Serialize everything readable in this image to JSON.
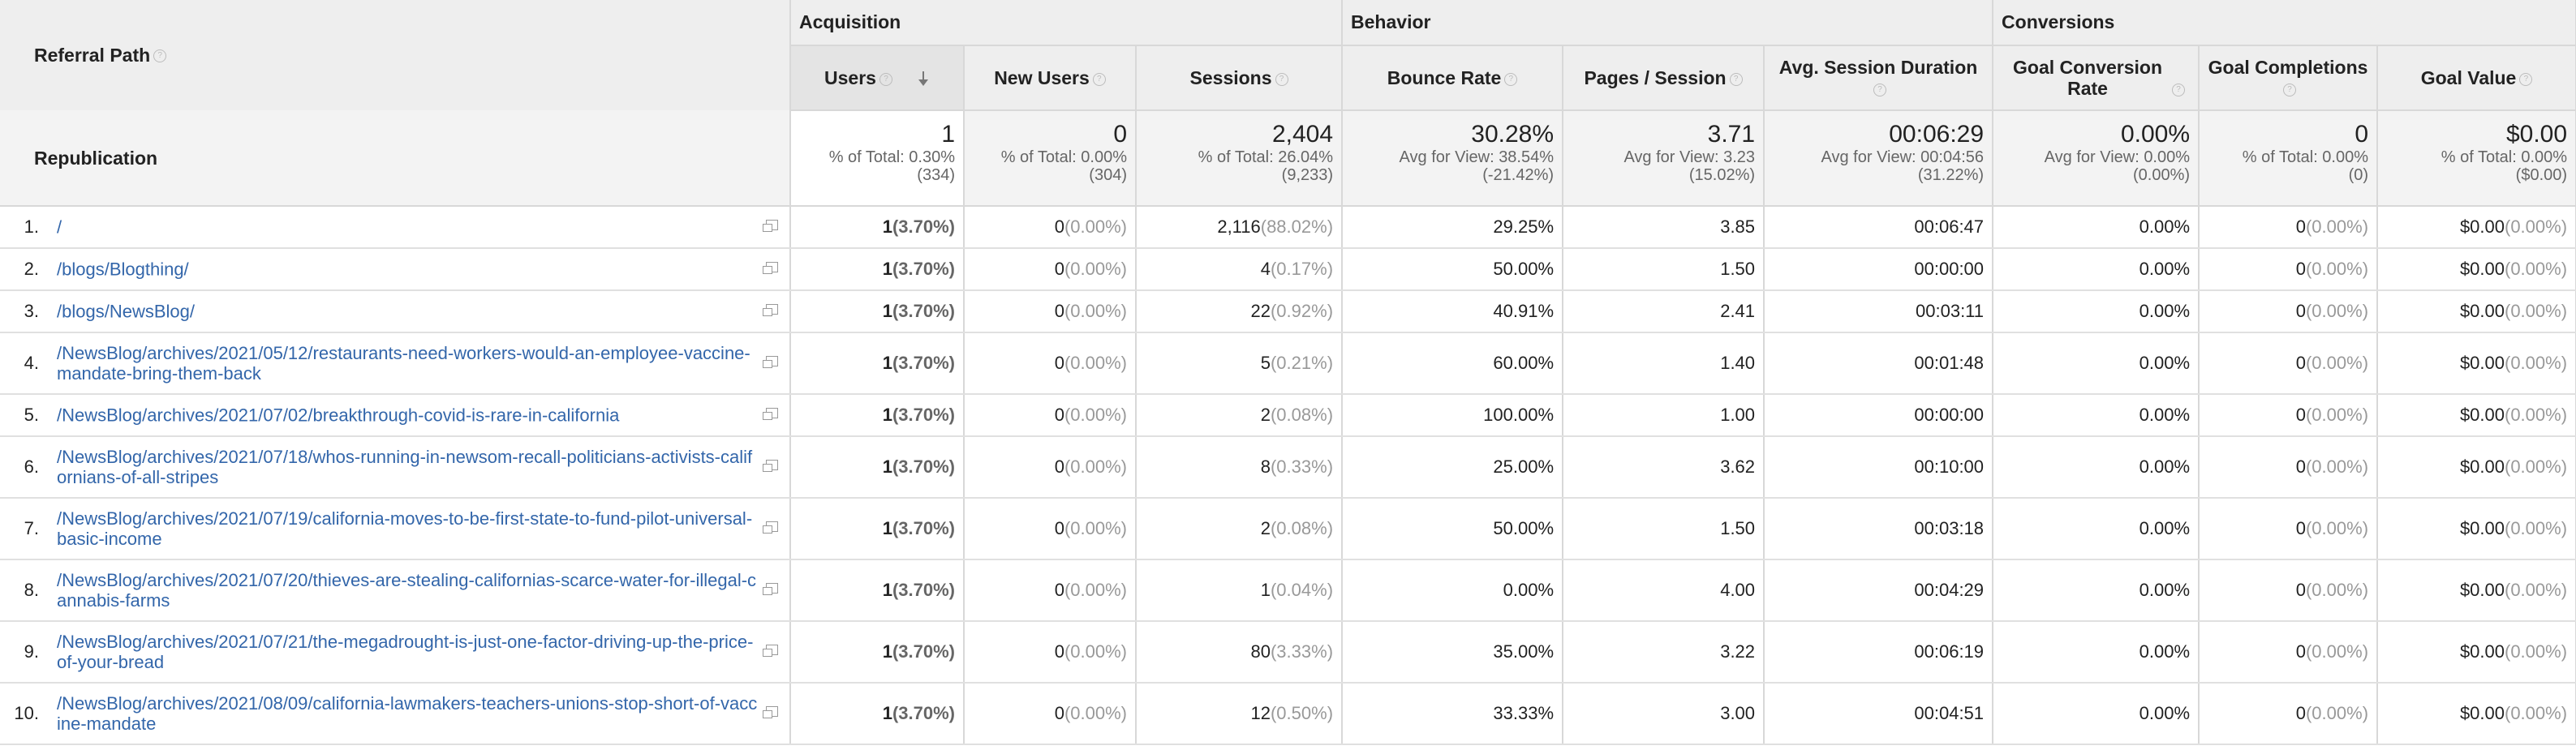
{
  "header": {
    "referral_path_label": "Referral Path",
    "groups": {
      "acquisition": "Acquisition",
      "behavior": "Behavior",
      "conversions": "Conversions"
    },
    "columns": {
      "users": "Users",
      "new_users": "New Users",
      "sessions": "Sessions",
      "bounce_rate": "Bounce Rate",
      "pages_session": "Pages / Session",
      "avg_duration": "Avg. Session Duration",
      "goal_conv_rate": "Goal Conversion Rate",
      "goal_completions": "Goal Completions",
      "goal_value": "Goal Value"
    }
  },
  "summary": {
    "label": "Republication",
    "users": {
      "value": "1",
      "line1": "% of Total: 0.30%",
      "line2": "(334)"
    },
    "new_users": {
      "value": "0",
      "line1": "% of Total: 0.00%",
      "line2": "(304)"
    },
    "sessions": {
      "value": "2,404",
      "line1": "% of Total: 26.04%",
      "line2": "(9,233)"
    },
    "bounce_rate": {
      "value": "30.28%",
      "line1": "Avg for View: 38.54%",
      "line2": "(-21.42%)"
    },
    "pages_session": {
      "value": "3.71",
      "line1": "Avg for View: 3.23",
      "line2": "(15.02%)"
    },
    "avg_duration": {
      "value": "00:06:29",
      "line1": "Avg for View: 00:04:56",
      "line2": "(31.22%)"
    },
    "goal_conv_rate": {
      "value": "0.00%",
      "line1": "Avg for View: 0.00%",
      "line2": "(0.00%)"
    },
    "goal_completions": {
      "value": "0",
      "line1": "% of Total: 0.00%",
      "line2": "(0)"
    },
    "goal_value": {
      "value": "$0.00",
      "line1": "% of Total: 0.00%",
      "line2": "($0.00)"
    }
  },
  "rows": [
    {
      "index": "1.",
      "path": "/",
      "users": "1",
      "users_pct": "(3.70%)",
      "new_users": "0",
      "new_users_pct": "(0.00%)",
      "sessions": "2,116",
      "sessions_pct": "(88.02%)",
      "bounce_rate": "29.25%",
      "pages_session": "3.85",
      "avg_duration": "00:06:47",
      "goal_conv_rate": "0.00%",
      "goal_completions": "0",
      "goal_completions_pct": "(0.00%)",
      "goal_value": "$0.00",
      "goal_value_pct": "(0.00%)"
    },
    {
      "index": "2.",
      "path": "/blogs/Blogthing/",
      "users": "1",
      "users_pct": "(3.70%)",
      "new_users": "0",
      "new_users_pct": "(0.00%)",
      "sessions": "4",
      "sessions_pct": "(0.17%)",
      "bounce_rate": "50.00%",
      "pages_session": "1.50",
      "avg_duration": "00:00:00",
      "goal_conv_rate": "0.00%",
      "goal_completions": "0",
      "goal_completions_pct": "(0.00%)",
      "goal_value": "$0.00",
      "goal_value_pct": "(0.00%)"
    },
    {
      "index": "3.",
      "path": "/blogs/NewsBlog/",
      "users": "1",
      "users_pct": "(3.70%)",
      "new_users": "0",
      "new_users_pct": "(0.00%)",
      "sessions": "22",
      "sessions_pct": "(0.92%)",
      "bounce_rate": "40.91%",
      "pages_session": "2.41",
      "avg_duration": "00:03:11",
      "goal_conv_rate": "0.00%",
      "goal_completions": "0",
      "goal_completions_pct": "(0.00%)",
      "goal_value": "$0.00",
      "goal_value_pct": "(0.00%)"
    },
    {
      "index": "4.",
      "path": "/NewsBlog/archives/2021/05/12/restaurants-need-workers-would-an-employee-vaccine-mandate-bring-them-back",
      "users": "1",
      "users_pct": "(3.70%)",
      "new_users": "0",
      "new_users_pct": "(0.00%)",
      "sessions": "5",
      "sessions_pct": "(0.21%)",
      "bounce_rate": "60.00%",
      "pages_session": "1.40",
      "avg_duration": "00:01:48",
      "goal_conv_rate": "0.00%",
      "goal_completions": "0",
      "goal_completions_pct": "(0.00%)",
      "goal_value": "$0.00",
      "goal_value_pct": "(0.00%)"
    },
    {
      "index": "5.",
      "path": "/NewsBlog/archives/2021/07/02/breakthrough-covid-is-rare-in-california",
      "users": "1",
      "users_pct": "(3.70%)",
      "new_users": "0",
      "new_users_pct": "(0.00%)",
      "sessions": "2",
      "sessions_pct": "(0.08%)",
      "bounce_rate": "100.00%",
      "pages_session": "1.00",
      "avg_duration": "00:00:00",
      "goal_conv_rate": "0.00%",
      "goal_completions": "0",
      "goal_completions_pct": "(0.00%)",
      "goal_value": "$0.00",
      "goal_value_pct": "(0.00%)"
    },
    {
      "index": "6.",
      "path": "/NewsBlog/archives/2021/07/18/whos-running-in-newsom-recall-politicians-activists-californians-of-all-stripes",
      "users": "1",
      "users_pct": "(3.70%)",
      "new_users": "0",
      "new_users_pct": "(0.00%)",
      "sessions": "8",
      "sessions_pct": "(0.33%)",
      "bounce_rate": "25.00%",
      "pages_session": "3.62",
      "avg_duration": "00:10:00",
      "goal_conv_rate": "0.00%",
      "goal_completions": "0",
      "goal_completions_pct": "(0.00%)",
      "goal_value": "$0.00",
      "goal_value_pct": "(0.00%)"
    },
    {
      "index": "7.",
      "path": "/NewsBlog/archives/2021/07/19/california-moves-to-be-first-state-to-fund-pilot-universal-basic-income",
      "users": "1",
      "users_pct": "(3.70%)",
      "new_users": "0",
      "new_users_pct": "(0.00%)",
      "sessions": "2",
      "sessions_pct": "(0.08%)",
      "bounce_rate": "50.00%",
      "pages_session": "1.50",
      "avg_duration": "00:03:18",
      "goal_conv_rate": "0.00%",
      "goal_completions": "0",
      "goal_completions_pct": "(0.00%)",
      "goal_value": "$0.00",
      "goal_value_pct": "(0.00%)"
    },
    {
      "index": "8.",
      "path": "/NewsBlog/archives/2021/07/20/thieves-are-stealing-californias-scarce-water-for-illegal-cannabis-farms",
      "users": "1",
      "users_pct": "(3.70%)",
      "new_users": "0",
      "new_users_pct": "(0.00%)",
      "sessions": "1",
      "sessions_pct": "(0.04%)",
      "bounce_rate": "0.00%",
      "pages_session": "4.00",
      "avg_duration": "00:04:29",
      "goal_conv_rate": "0.00%",
      "goal_completions": "0",
      "goal_completions_pct": "(0.00%)",
      "goal_value": "$0.00",
      "goal_value_pct": "(0.00%)"
    },
    {
      "index": "9.",
      "path": "/NewsBlog/archives/2021/07/21/the-megadrought-is-just-one-factor-driving-up-the-price-of-your-bread",
      "users": "1",
      "users_pct": "(3.70%)",
      "new_users": "0",
      "new_users_pct": "(0.00%)",
      "sessions": "80",
      "sessions_pct": "(3.33%)",
      "bounce_rate": "35.00%",
      "pages_session": "3.22",
      "avg_duration": "00:06:19",
      "goal_conv_rate": "0.00%",
      "goal_completions": "0",
      "goal_completions_pct": "(0.00%)",
      "goal_value": "$0.00",
      "goal_value_pct": "(0.00%)"
    },
    {
      "index": "10.",
      "path": "/NewsBlog/archives/2021/08/09/california-lawmakers-teachers-unions-stop-short-of-vaccine-mandate",
      "users": "1",
      "users_pct": "(3.70%)",
      "new_users": "0",
      "new_users_pct": "(0.00%)",
      "sessions": "12",
      "sessions_pct": "(0.50%)",
      "bounce_rate": "33.33%",
      "pages_session": "3.00",
      "avg_duration": "00:04:51",
      "goal_conv_rate": "0.00%",
      "goal_completions": "0",
      "goal_completions_pct": "(0.00%)",
      "goal_value": "$0.00",
      "goal_value_pct": "(0.00%)"
    }
  ]
}
